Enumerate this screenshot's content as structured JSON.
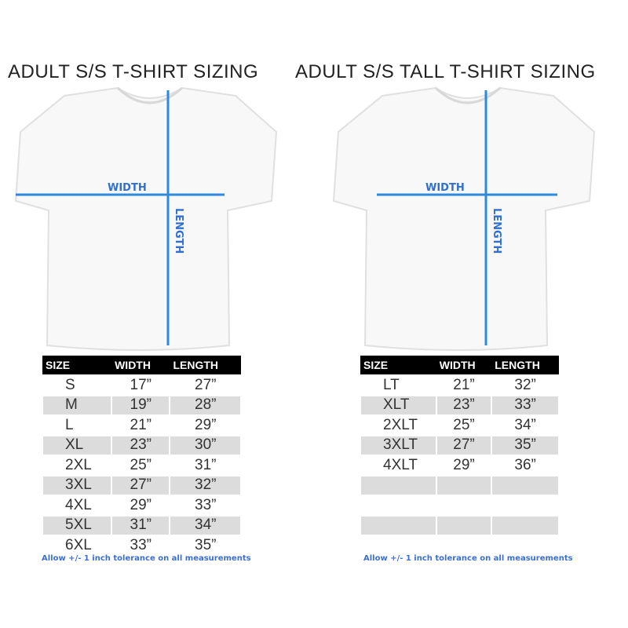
{
  "left": {
    "title": "ADULT S/S T-SHIRT SIZING",
    "width_label": "WIDTH",
    "length_label": "LENGTH",
    "headers": [
      "SIZE",
      "WIDTH",
      "LENGTH"
    ],
    "rows": [
      [
        "S",
        "17”",
        "27”"
      ],
      [
        "M",
        "19”",
        "28”"
      ],
      [
        "L",
        "21”",
        "29”"
      ],
      [
        "XL",
        "23”",
        "30”"
      ],
      [
        "2XL",
        "25”",
        "31”"
      ],
      [
        "3XL",
        "27”",
        "32”"
      ],
      [
        "4XL",
        "29”",
        "33”"
      ],
      [
        "5XL",
        "31”",
        "34”"
      ],
      [
        "6XL",
        "33”",
        "35”"
      ]
    ],
    "note": "Allow +/- 1 inch tolerance on all measurements"
  },
  "right": {
    "title": "ADULT S/S TALL T-SHIRT SIZING",
    "width_label": "WIDTH",
    "length_label": "LENGTH",
    "headers": [
      "SIZE",
      "WIDTH",
      "LENGTH"
    ],
    "rows": [
      [
        "LT",
        "21”",
        "32”"
      ],
      [
        "XLT",
        "23”",
        "33”"
      ],
      [
        "2XLT",
        "25”",
        "34”"
      ],
      [
        "3XLT",
        "27”",
        "35”"
      ],
      [
        "4XLT",
        "29”",
        "36”"
      ],
      [
        "",
        "",
        ""
      ],
      [
        "",
        "",
        ""
      ],
      [
        "",
        "",
        ""
      ],
      [
        "",
        "",
        ""
      ]
    ],
    "note": "Allow +/- 1 inch tolerance on all measurements"
  },
  "colors": {
    "measure_line": "#2b8ae0",
    "label": "#2f6fcf",
    "note": "#3b6fd0",
    "header_bg": "#000000",
    "alt_row": "#dcdcdc"
  }
}
